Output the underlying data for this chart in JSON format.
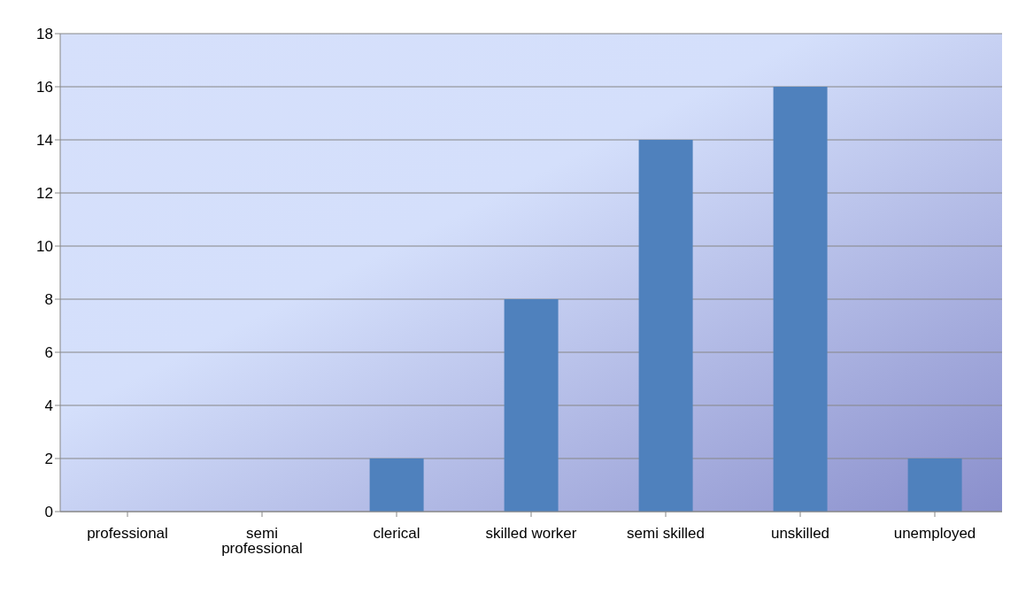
{
  "chart_data": {
    "type": "bar",
    "categories": [
      "professional",
      "semi professional",
      "clerical",
      "skilled worker",
      "semi skilled",
      "unskilled",
      "unemployed"
    ],
    "values": [
      0,
      0,
      2,
      8,
      14,
      16,
      2
    ],
    "color": "#4f81bd",
    "ylim": [
      0,
      18
    ],
    "yticks": [
      0,
      2,
      4,
      6,
      8,
      10,
      12,
      14,
      16,
      18
    ],
    "grid": "y"
  }
}
